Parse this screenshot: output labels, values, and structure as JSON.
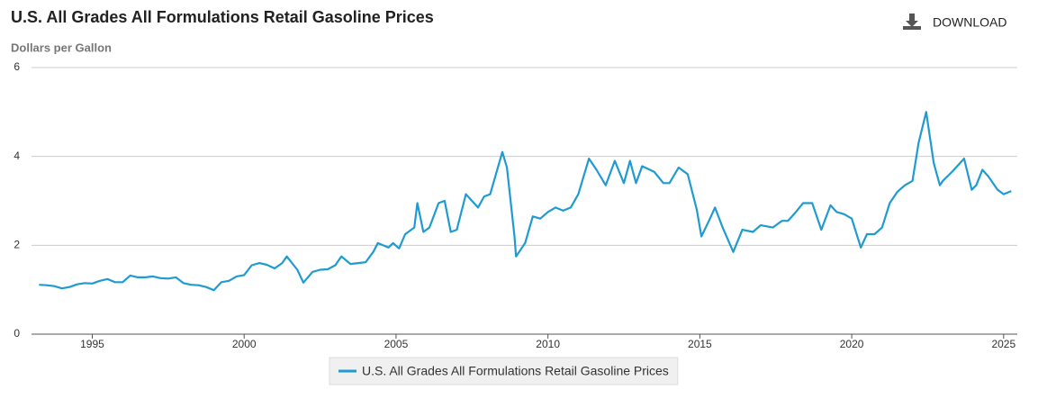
{
  "download_label": "DOWNLOAD",
  "chart_data": {
    "type": "line",
    "title": "U.S. All Grades All Formulations Retail Gasoline Prices",
    "y_label": "Dollars per Gallon",
    "xlim": [
      1993,
      2025.45
    ],
    "xticks": [
      1995,
      2000,
      2005,
      2010,
      2015,
      2020,
      2025
    ],
    "ylim": [
      0,
      6
    ],
    "yticks": [
      0,
      2,
      4,
      6
    ],
    "grid": true,
    "legend": "bottom",
    "x": [
      1993.25,
      1993.5,
      1993.75,
      1994.0,
      1994.25,
      1994.5,
      1994.75,
      1995.0,
      1995.25,
      1995.5,
      1995.75,
      1996.0,
      1996.25,
      1996.5,
      1996.75,
      1997.0,
      1997.25,
      1997.5,
      1997.75,
      1998.0,
      1998.25,
      1998.5,
      1998.75,
      1999.0,
      1999.25,
      1999.5,
      1999.75,
      2000.0,
      2000.25,
      2000.5,
      2000.75,
      2001.0,
      2001.25,
      2001.4,
      2001.75,
      2001.95,
      2002.25,
      2002.5,
      2002.75,
      2003.0,
      2003.2,
      2003.5,
      2003.75,
      2004.0,
      2004.25,
      2004.4,
      2004.75,
      2004.9,
      2005.1,
      2005.3,
      2005.6,
      2005.7,
      2005.9,
      2006.1,
      2006.4,
      2006.6,
      2006.8,
      2007.0,
      2007.3,
      2007.5,
      2007.7,
      2007.9,
      2008.1,
      2008.5,
      2008.65,
      2008.9,
      2008.95,
      2009.25,
      2009.5,
      2009.75,
      2010.0,
      2010.25,
      2010.5,
      2010.75,
      2011.0,
      2011.35,
      2011.6,
      2011.9,
      2012.2,
      2012.5,
      2012.7,
      2012.9,
      2013.1,
      2013.5,
      2013.8,
      2014.0,
      2014.3,
      2014.6,
      2014.9,
      2015.05,
      2015.3,
      2015.5,
      2015.75,
      2016.1,
      2016.4,
      2016.75,
      2017.0,
      2017.4,
      2017.7,
      2017.9,
      2018.1,
      2018.4,
      2018.7,
      2019.0,
      2019.3,
      2019.5,
      2019.75,
      2020.0,
      2020.3,
      2020.5,
      2020.75,
      2021.0,
      2021.25,
      2021.5,
      2021.75,
      2022.0,
      2022.2,
      2022.45,
      2022.7,
      2022.9,
      2023.0,
      2023.3,
      2023.7,
      2023.95,
      2024.1,
      2024.3,
      2024.5,
      2024.8,
      2025.0,
      2025.25
    ],
    "series": [
      {
        "name": "U.S. All Grades All Formulations Retail Gasoline Prices",
        "color": "#1f9bd1",
        "values": [
          1.11,
          1.1,
          1.08,
          1.03,
          1.06,
          1.12,
          1.15,
          1.14,
          1.2,
          1.24,
          1.17,
          1.17,
          1.32,
          1.28,
          1.28,
          1.3,
          1.26,
          1.25,
          1.28,
          1.15,
          1.11,
          1.1,
          1.06,
          0.99,
          1.17,
          1.2,
          1.3,
          1.33,
          1.55,
          1.6,
          1.56,
          1.48,
          1.6,
          1.75,
          1.45,
          1.16,
          1.4,
          1.45,
          1.46,
          1.55,
          1.75,
          1.58,
          1.6,
          1.62,
          1.85,
          2.05,
          1.95,
          2.05,
          1.93,
          2.25,
          2.4,
          2.95,
          2.3,
          2.4,
          2.95,
          3.0,
          2.3,
          2.35,
          3.15,
          3.0,
          2.85,
          3.1,
          3.15,
          4.1,
          3.75,
          2.2,
          1.75,
          2.05,
          2.65,
          2.6,
          2.75,
          2.85,
          2.78,
          2.85,
          3.15,
          3.95,
          3.7,
          3.35,
          3.9,
          3.4,
          3.9,
          3.4,
          3.78,
          3.65,
          3.4,
          3.4,
          3.75,
          3.6,
          2.8,
          2.2,
          2.55,
          2.85,
          2.4,
          1.85,
          2.35,
          2.3,
          2.45,
          2.4,
          2.55,
          2.55,
          2.7,
          2.95,
          2.95,
          2.35,
          2.9,
          2.75,
          2.7,
          2.6,
          1.95,
          2.25,
          2.25,
          2.4,
          2.95,
          3.2,
          3.35,
          3.45,
          4.3,
          5.0,
          3.85,
          3.35,
          3.45,
          3.65,
          3.95,
          3.25,
          3.35,
          3.7,
          3.55,
          3.25,
          3.15,
          3.22
        ]
      }
    ]
  }
}
